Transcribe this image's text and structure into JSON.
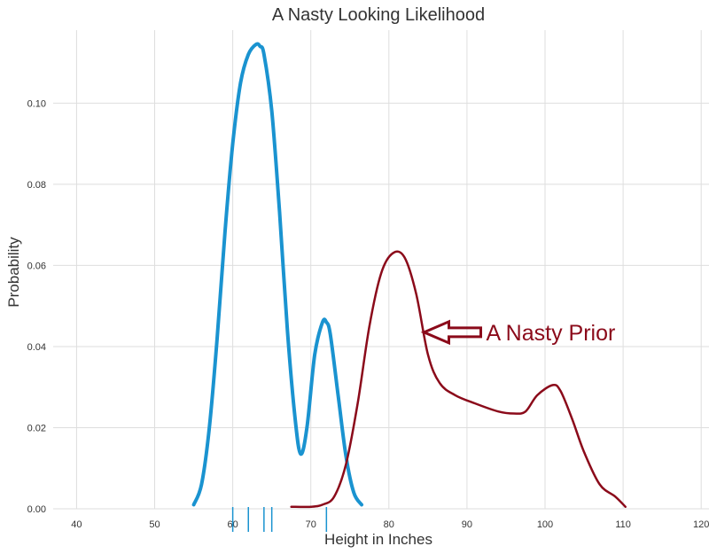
{
  "chart_data": {
    "type": "line",
    "title": "A Nasty Looking Likelihood",
    "xlabel": "Height in Inches",
    "ylabel": "Probability",
    "xlim": [
      37,
      121
    ],
    "ylim": [
      0,
      0.118
    ],
    "xticks": [
      40,
      50,
      60,
      70,
      80,
      90,
      100,
      110,
      120
    ],
    "yticks": [
      0.0,
      0.02,
      0.04,
      0.06,
      0.08,
      0.1
    ],
    "ytick_labels": [
      "0.00",
      "0.02",
      "0.04",
      "0.06",
      "0.08",
      "0.10"
    ],
    "grid": true,
    "series": [
      {
        "color": "#1a93d0",
        "x": [
          55,
          56,
          57,
          58,
          59,
          60,
          61,
          62,
          63,
          63.5,
          64,
          65,
          66,
          67,
          68,
          68.7,
          69.5,
          70.5,
          71.5,
          72,
          72.5,
          73.5,
          74.5,
          75.5,
          76.5
        ],
        "y": [
          0.001,
          0.006,
          0.02,
          0.042,
          0.068,
          0.09,
          0.105,
          0.112,
          0.1145,
          0.114,
          0.112,
          0.098,
          0.073,
          0.044,
          0.022,
          0.0135,
          0.02,
          0.038,
          0.046,
          0.046,
          0.043,
          0.028,
          0.013,
          0.004,
          0.001
        ]
      },
      {
        "color": "#8b0a1a",
        "x": [
          67.5,
          70,
          71.5,
          73,
          74.5,
          76,
          77.5,
          79,
          80.5,
          82,
          83.5,
          85,
          86.5,
          88.5,
          91,
          94,
          96,
          97.5,
          99,
          101,
          102,
          103.5,
          105,
          107,
          109,
          110.3
        ],
        "y": [
          0.0005,
          0.0005,
          0.001,
          0.003,
          0.011,
          0.026,
          0.045,
          0.058,
          0.063,
          0.062,
          0.053,
          0.038,
          0.031,
          0.028,
          0.026,
          0.024,
          0.0235,
          0.024,
          0.028,
          0.0305,
          0.029,
          0.022,
          0.014,
          0.006,
          0.003,
          0.0005
        ]
      }
    ],
    "rug": {
      "color": "#1a93d0",
      "x": [
        60,
        62,
        64,
        65,
        72
      ]
    },
    "annotation": {
      "text": "A Nasty Prior",
      "color": "#8b0a1a",
      "arrow_x": 84.5,
      "arrow_y": 0.0435
    }
  }
}
